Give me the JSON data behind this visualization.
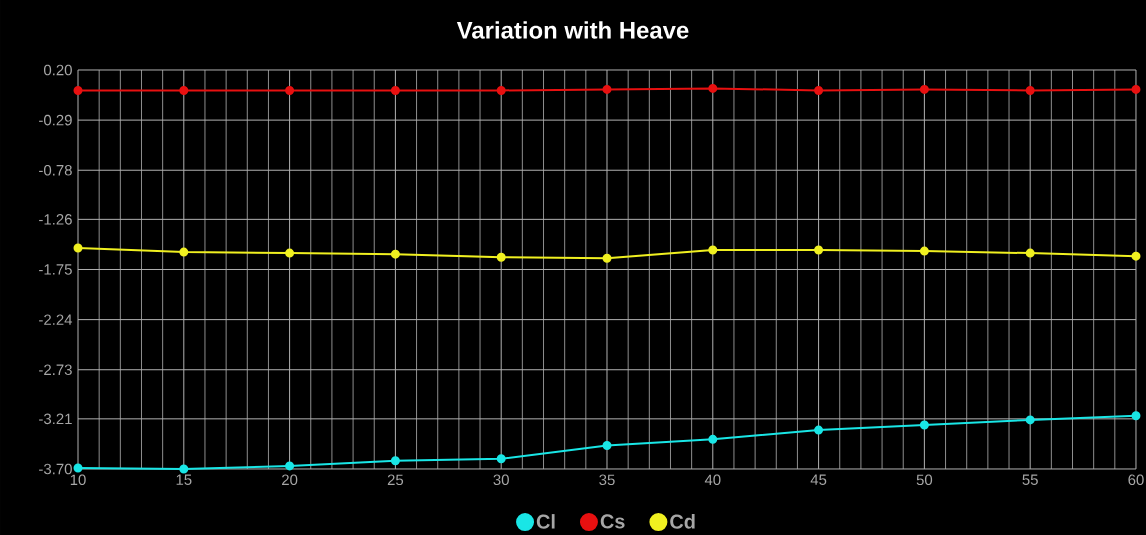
{
  "chart_data": {
    "type": "line",
    "title": "Variation with Heave",
    "x": [
      10,
      15,
      20,
      25,
      30,
      35,
      40,
      45,
      50,
      55,
      60
    ],
    "series": [
      {
        "name": "Cl",
        "color": "#19e6e6",
        "values": [
          -3.69,
          -3.7,
          -3.67,
          -3.62,
          -3.6,
          -3.47,
          -3.41,
          -3.32,
          -3.27,
          -3.22,
          -3.18
        ]
      },
      {
        "name": "Cs",
        "color": "#e81010",
        "values": [
          0.0,
          0.0,
          0.0,
          0.0,
          0.0,
          0.01,
          0.02,
          0.0,
          0.01,
          0.0,
          0.01
        ]
      },
      {
        "name": "Cd",
        "color": "#f0f020",
        "values": [
          -1.54,
          -1.58,
          -1.59,
          -1.6,
          -1.63,
          -1.64,
          -1.56,
          -1.56,
          -1.57,
          -1.59,
          -1.62
        ]
      }
    ],
    "xlim": [
      10,
      60
    ],
    "xticks": [
      10,
      15,
      20,
      25,
      30,
      35,
      40,
      45,
      50,
      55,
      60
    ],
    "ylim": [
      -3.7,
      0.2
    ],
    "yticks": [
      {
        "value": 0.2,
        "label": "0.20"
      },
      -0.29,
      -0.78,
      -1.26,
      -1.75,
      -2.24,
      -2.73,
      -3.21,
      {
        "value": -3.7,
        "label": "-3.70"
      }
    ],
    "grid": true,
    "legend": "bottom",
    "marker": "circle",
    "line_style": "solid"
  }
}
